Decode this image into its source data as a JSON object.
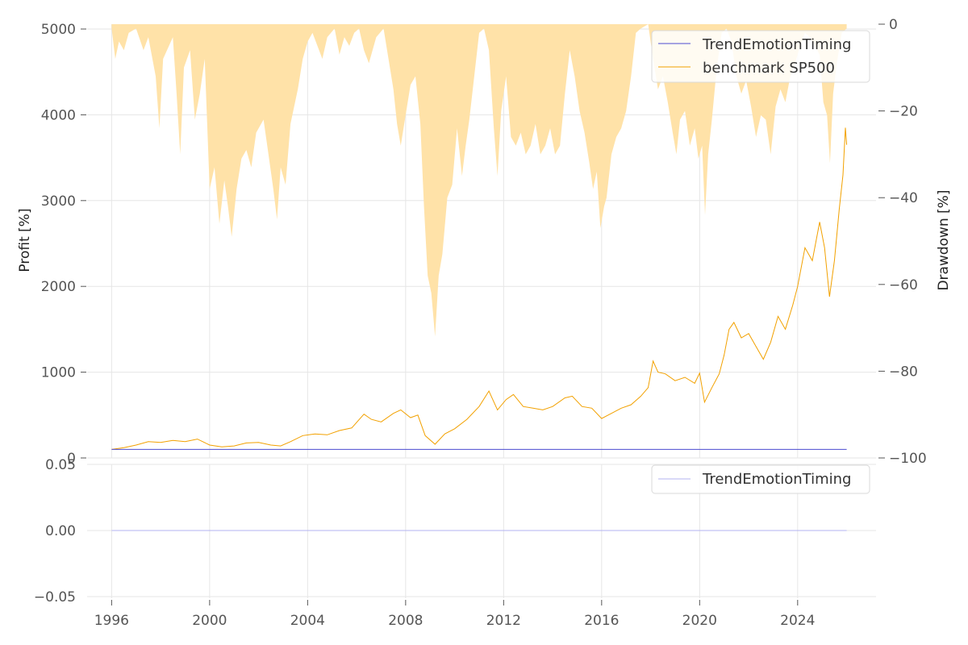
{
  "chart_data": [
    {
      "type": "line",
      "ylabel": "Profit [%]",
      "ylim": [
        0,
        5000
      ],
      "y_ticks": [
        "0",
        "1000",
        "2000",
        "3000",
        "4000",
        "5000"
      ],
      "secondary_axis": {
        "type": "area",
        "ylabel": "Drawdown [%]",
        "ylim": [
          -100,
          0
        ],
        "y_ticks": [
          "−100",
          "−80",
          "−60",
          "−40",
          "−20",
          "0"
        ],
        "series_name": "benchmark SP500 drawdown",
        "color": "#ffe2a8",
        "points": [
          [
            1996.0,
            -1
          ],
          [
            1996.15,
            -8
          ],
          [
            1996.3,
            -4
          ],
          [
            1996.5,
            -6
          ],
          [
            1996.7,
            -2
          ],
          [
            1997.0,
            -1
          ],
          [
            1997.3,
            -6
          ],
          [
            1997.5,
            -3
          ],
          [
            1997.8,
            -12
          ],
          [
            1997.95,
            -24
          ],
          [
            1998.1,
            -8
          ],
          [
            1998.5,
            -3
          ],
          [
            1998.65,
            -16
          ],
          [
            1998.8,
            -30
          ],
          [
            1998.95,
            -10
          ],
          [
            1999.2,
            -6
          ],
          [
            1999.4,
            -22
          ],
          [
            1999.6,
            -16
          ],
          [
            1999.8,
            -8
          ],
          [
            2000.0,
            -38
          ],
          [
            2000.2,
            -33
          ],
          [
            2000.4,
            -46
          ],
          [
            2000.6,
            -36
          ],
          [
            2000.75,
            -42
          ],
          [
            2000.9,
            -49
          ],
          [
            2001.1,
            -38
          ],
          [
            2001.3,
            -31
          ],
          [
            2001.5,
            -29
          ],
          [
            2001.7,
            -33
          ],
          [
            2001.9,
            -25
          ],
          [
            2002.2,
            -22
          ],
          [
            2002.4,
            -30
          ],
          [
            2002.6,
            -38
          ],
          [
            2002.75,
            -45
          ],
          [
            2002.9,
            -33
          ],
          [
            2003.1,
            -37
          ],
          [
            2003.3,
            -23
          ],
          [
            2003.6,
            -15
          ],
          [
            2003.8,
            -8
          ],
          [
            2004.0,
            -4
          ],
          [
            2004.2,
            -2
          ],
          [
            2004.4,
            -5
          ],
          [
            2004.6,
            -8
          ],
          [
            2004.8,
            -3
          ],
          [
            2005.1,
            -1
          ],
          [
            2005.3,
            -7
          ],
          [
            2005.5,
            -3
          ],
          [
            2005.7,
            -5
          ],
          [
            2005.9,
            -2
          ],
          [
            2006.1,
            -1
          ],
          [
            2006.3,
            -6
          ],
          [
            2006.5,
            -9
          ],
          [
            2006.8,
            -3
          ],
          [
            2007.1,
            -1
          ],
          [
            2007.3,
            -8
          ],
          [
            2007.5,
            -15
          ],
          [
            2007.65,
            -23
          ],
          [
            2007.8,
            -28
          ],
          [
            2008.0,
            -21
          ],
          [
            2008.2,
            -14
          ],
          [
            2008.4,
            -12
          ],
          [
            2008.6,
            -23
          ],
          [
            2008.75,
            -42
          ],
          [
            2008.9,
            -58
          ],
          [
            2009.05,
            -62
          ],
          [
            2009.2,
            -72
          ],
          [
            2009.35,
            -58
          ],
          [
            2009.5,
            -53
          ],
          [
            2009.7,
            -40
          ],
          [
            2009.9,
            -37
          ],
          [
            2010.1,
            -24
          ],
          [
            2010.3,
            -35
          ],
          [
            2010.45,
            -28
          ],
          [
            2010.6,
            -22
          ],
          [
            2010.8,
            -12
          ],
          [
            2011.0,
            -2
          ],
          [
            2011.2,
            -1
          ],
          [
            2011.4,
            -6
          ],
          [
            2011.6,
            -24
          ],
          [
            2011.75,
            -35
          ],
          [
            2011.9,
            -20
          ],
          [
            2012.1,
            -12
          ],
          [
            2012.3,
            -26
          ],
          [
            2012.5,
            -28
          ],
          [
            2012.7,
            -25
          ],
          [
            2012.9,
            -30
          ],
          [
            2013.1,
            -28
          ],
          [
            2013.3,
            -23
          ],
          [
            2013.5,
            -30
          ],
          [
            2013.7,
            -28
          ],
          [
            2013.9,
            -24
          ],
          [
            2014.1,
            -30
          ],
          [
            2014.3,
            -28
          ],
          [
            2014.5,
            -16
          ],
          [
            2014.7,
            -6
          ],
          [
            2014.9,
            -12
          ],
          [
            2015.1,
            -20
          ],
          [
            2015.3,
            -25
          ],
          [
            2015.5,
            -32
          ],
          [
            2015.65,
            -38
          ],
          [
            2015.8,
            -34
          ],
          [
            2015.95,
            -47
          ],
          [
            2016.1,
            -42
          ],
          [
            2016.2,
            -40
          ],
          [
            2016.4,
            -30
          ],
          [
            2016.6,
            -26
          ],
          [
            2016.8,
            -24
          ],
          [
            2017.0,
            -20
          ],
          [
            2017.2,
            -12
          ],
          [
            2017.4,
            -2
          ],
          [
            2017.6,
            -1
          ],
          [
            2017.9,
            0
          ],
          [
            2018.1,
            -8
          ],
          [
            2018.3,
            -15
          ],
          [
            2018.5,
            -12
          ],
          [
            2018.7,
            -18
          ],
          [
            2018.9,
            -25
          ],
          [
            2019.05,
            -30
          ],
          [
            2019.2,
            -22
          ],
          [
            2019.4,
            -20
          ],
          [
            2019.6,
            -28
          ],
          [
            2019.8,
            -24
          ],
          [
            2019.95,
            -31
          ],
          [
            2020.1,
            -28
          ],
          [
            2020.22,
            -44
          ],
          [
            2020.35,
            -30
          ],
          [
            2020.5,
            -22
          ],
          [
            2020.7,
            -10
          ],
          [
            2020.9,
            -2
          ],
          [
            2021.1,
            -1
          ],
          [
            2021.3,
            -4
          ],
          [
            2021.5,
            -12
          ],
          [
            2021.7,
            -16
          ],
          [
            2021.9,
            -13
          ],
          [
            2022.1,
            -19
          ],
          [
            2022.3,
            -26
          ],
          [
            2022.5,
            -21
          ],
          [
            2022.7,
            -22
          ],
          [
            2022.9,
            -30
          ],
          [
            2023.1,
            -19
          ],
          [
            2023.3,
            -15
          ],
          [
            2023.5,
            -18
          ],
          [
            2023.7,
            -12
          ],
          [
            2023.9,
            -9
          ],
          [
            2024.1,
            -5
          ],
          [
            2024.3,
            -2
          ],
          [
            2024.5,
            -3
          ],
          [
            2024.7,
            -5
          ],
          [
            2024.9,
            -7
          ],
          [
            2025.05,
            -18
          ],
          [
            2025.2,
            -21
          ],
          [
            2025.32,
            -32
          ],
          [
            2025.45,
            -16
          ],
          [
            2025.6,
            -9
          ],
          [
            2025.8,
            -2
          ],
          [
            2026.0,
            -1
          ]
        ]
      },
      "series": [
        {
          "name": "TrendEmotionTiming",
          "color": "#4b4bd0",
          "points": [
            [
              1996.0,
              100
            ],
            [
              2026.0,
              100
            ]
          ]
        },
        {
          "name": "benchmark SP500",
          "color": "#f2a100",
          "points": [
            [
              1996.0,
              100
            ],
            [
              1996.5,
              120
            ],
            [
              1997.0,
              150
            ],
            [
              1997.5,
              190
            ],
            [
              1998.0,
              180
            ],
            [
              1998.5,
              205
            ],
            [
              1999.0,
              190
            ],
            [
              1999.5,
              220
            ],
            [
              2000.0,
              150
            ],
            [
              2000.5,
              130
            ],
            [
              2001.0,
              140
            ],
            [
              2001.5,
              175
            ],
            [
              2002.0,
              180
            ],
            [
              2002.5,
              150
            ],
            [
              2002.9,
              140
            ],
            [
              2003.3,
              190
            ],
            [
              2003.8,
              260
            ],
            [
              2004.3,
              280
            ],
            [
              2004.8,
              270
            ],
            [
              2005.3,
              320
            ],
            [
              2005.8,
              350
            ],
            [
              2006.3,
              510
            ],
            [
              2006.6,
              450
            ],
            [
              2007.0,
              420
            ],
            [
              2007.5,
              520
            ],
            [
              2007.8,
              560
            ],
            [
              2008.2,
              470
            ],
            [
              2008.5,
              500
            ],
            [
              2008.8,
              260
            ],
            [
              2009.2,
              160
            ],
            [
              2009.6,
              280
            ],
            [
              2010.0,
              340
            ],
            [
              2010.5,
              450
            ],
            [
              2011.0,
              600
            ],
            [
              2011.4,
              780
            ],
            [
              2011.75,
              560
            ],
            [
              2012.1,
              680
            ],
            [
              2012.4,
              740
            ],
            [
              2012.8,
              600
            ],
            [
              2013.2,
              580
            ],
            [
              2013.6,
              560
            ],
            [
              2014.0,
              600
            ],
            [
              2014.5,
              700
            ],
            [
              2014.8,
              720
            ],
            [
              2015.2,
              600
            ],
            [
              2015.6,
              580
            ],
            [
              2016.0,
              460
            ],
            [
              2016.4,
              520
            ],
            [
              2016.8,
              580
            ],
            [
              2017.2,
              620
            ],
            [
              2017.6,
              720
            ],
            [
              2017.9,
              820
            ],
            [
              2018.1,
              1130
            ],
            [
              2018.3,
              1000
            ],
            [
              2018.6,
              980
            ],
            [
              2019.0,
              900
            ],
            [
              2019.4,
              940
            ],
            [
              2019.8,
              870
            ],
            [
              2020.0,
              990
            ],
            [
              2020.2,
              650
            ],
            [
              2020.5,
              820
            ],
            [
              2020.8,
              980
            ],
            [
              2021.0,
              1200
            ],
            [
              2021.2,
              1500
            ],
            [
              2021.4,
              1580
            ],
            [
              2021.7,
              1400
            ],
            [
              2022.0,
              1450
            ],
            [
              2022.3,
              1300
            ],
            [
              2022.6,
              1150
            ],
            [
              2022.9,
              1350
            ],
            [
              2023.2,
              1650
            ],
            [
              2023.5,
              1500
            ],
            [
              2023.8,
              1780
            ],
            [
              2024.0,
              2000
            ],
            [
              2024.3,
              2450
            ],
            [
              2024.6,
              2300
            ],
            [
              2024.9,
              2750
            ],
            [
              2025.1,
              2450
            ],
            [
              2025.3,
              1880
            ],
            [
              2025.5,
              2300
            ],
            [
              2025.7,
              2900
            ],
            [
              2025.85,
              3300
            ],
            [
              2025.95,
              3850
            ],
            [
              2026.0,
              3650
            ]
          ]
        }
      ],
      "legend": [
        "TrendEmotionTiming",
        "benchmark SP500"
      ],
      "legend_position": "top-right",
      "grid": true
    },
    {
      "type": "line",
      "xlabel": "",
      "xlim": [
        1995.0,
        2027.2
      ],
      "x_ticks": [
        "1996",
        "2000",
        "2004",
        "2008",
        "2012",
        "2016",
        "2020",
        "2024"
      ],
      "ylim": [
        -0.05,
        0.05
      ],
      "y_ticks": [
        "−0.05",
        "0.00",
        "0.05"
      ],
      "series": [
        {
          "name": "TrendEmotionTiming",
          "color": "#b3b3f0",
          "points": [
            [
              1996.0,
              0.0
            ],
            [
              2026.0,
              0.0
            ]
          ]
        }
      ],
      "legend": [
        "TrendEmotionTiming"
      ],
      "legend_position": "top-right",
      "grid": true
    }
  ]
}
